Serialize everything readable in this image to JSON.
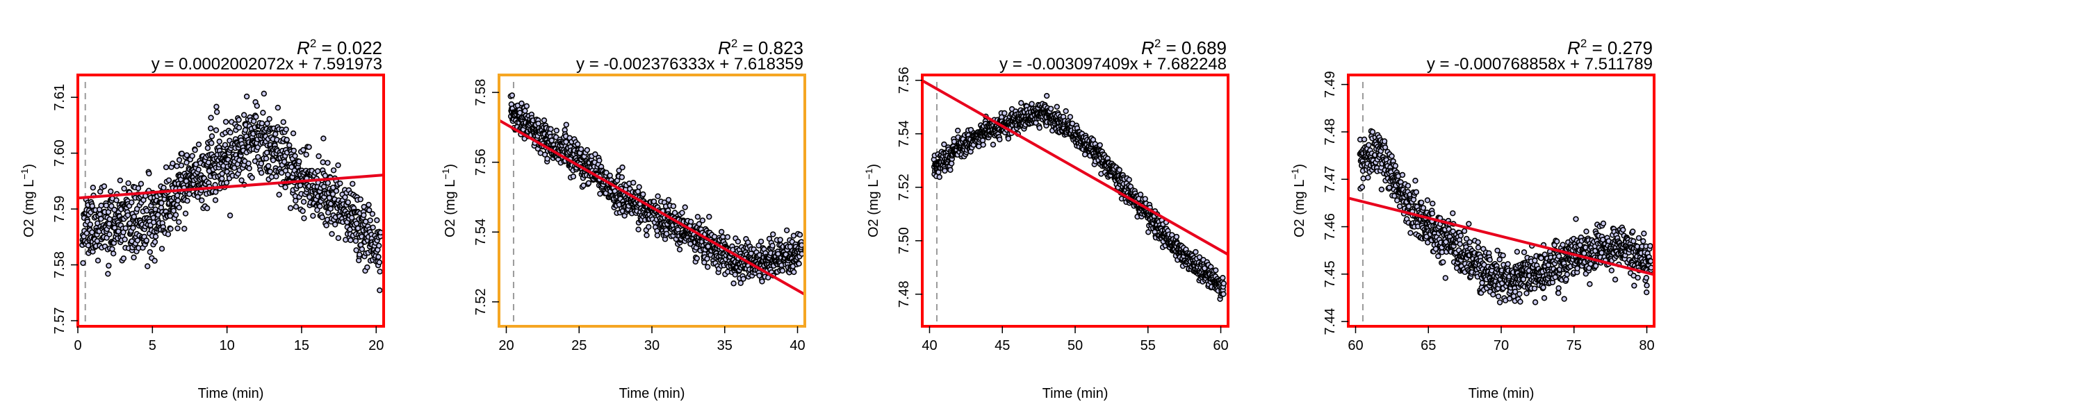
{
  "colors": {
    "panel_border_default": "#ff0000",
    "panel_border_highlight": "#f5a623",
    "fit_line": "#e8001c",
    "point_fill": "#c9c9ee",
    "point_stroke": "#000000",
    "start_marker": "#9a9a9a"
  },
  "chart_data": [
    {
      "type": "scatter",
      "title": "",
      "xlabel": "Time (min)",
      "ylabel_prefix": "O2 (mg L",
      "ylabel_exponent": "−1",
      "ylabel_suffix": ")",
      "xlim": [
        0,
        20.5
      ],
      "ylim": [
        7.569,
        7.614
      ],
      "x_ticks": [
        0,
        5,
        10,
        15,
        20
      ],
      "x_tick_labels": [
        "0",
        "5",
        "10",
        "15",
        "20"
      ],
      "y_ticks": [
        7.57,
        7.58,
        7.59,
        7.6,
        7.61
      ],
      "y_tick_labels": [
        "7.57",
        "7.58",
        "7.59",
        "7.60",
        "7.61"
      ],
      "grid": false,
      "border": "default",
      "r2_label": "R",
      "r2_exponent": "2",
      "r2_value": " = 0.022",
      "equation": "y = 0.0002002072x + 7.591973",
      "fit": {
        "slope": 0.0002002072,
        "intercept": 7.591973
      },
      "start_marker_x": 0.5,
      "x_range": [
        0.3,
        20.3
      ],
      "trend_points": [
        [
          0.3,
          7.587
        ],
        [
          3,
          7.587
        ],
        [
          5,
          7.588
        ],
        [
          7.5,
          7.595
        ],
        [
          10,
          7.599
        ],
        [
          12.5,
          7.603
        ],
        [
          15,
          7.596
        ],
        [
          17,
          7.592
        ],
        [
          19,
          7.587
        ],
        [
          20.3,
          7.582
        ]
      ],
      "noise": 0.0055,
      "n_points": 1200,
      "seed": 11
    },
    {
      "type": "scatter",
      "title": "",
      "xlabel": "Time (min)",
      "ylabel_prefix": "O2 (mg L",
      "ylabel_exponent": "−1",
      "ylabel_suffix": ")",
      "xlim": [
        19.5,
        40.5
      ],
      "ylim": [
        7.513,
        7.585
      ],
      "x_ticks": [
        20,
        25,
        30,
        35,
        40
      ],
      "x_tick_labels": [
        "20",
        "25",
        "30",
        "35",
        "40"
      ],
      "y_ticks": [
        7.52,
        7.54,
        7.56,
        7.58
      ],
      "y_tick_labels": [
        "7.52",
        "7.54",
        "7.56",
        "7.58"
      ],
      "grid": false,
      "border": "highlight",
      "r2_label": "R",
      "r2_exponent": "2",
      "r2_value": " = 0.823",
      "equation": "y = -0.002376333x + 7.618359",
      "fit": {
        "slope": -0.002376333,
        "intercept": 7.618359
      },
      "start_marker_x": 20.5,
      "x_range": [
        20.3,
        40.3
      ],
      "trend_points": [
        [
          20.3,
          7.574
        ],
        [
          22,
          7.569
        ],
        [
          25,
          7.56
        ],
        [
          28,
          7.55
        ],
        [
          31,
          7.543
        ],
        [
          34,
          7.536
        ],
        [
          36,
          7.531
        ],
        [
          38,
          7.532
        ],
        [
          40.3,
          7.534
        ]
      ],
      "noise": 0.0045,
      "n_points": 1200,
      "seed": 23
    },
    {
      "type": "scatter",
      "title": "",
      "xlabel": "Time (min)",
      "ylabel_prefix": "O2 (mg L",
      "ylabel_exponent": "−1",
      "ylabel_suffix": ")",
      "xlim": [
        39.5,
        60.5
      ],
      "ylim": [
        7.468,
        7.562
      ],
      "x_ticks": [
        40,
        45,
        50,
        55,
        60
      ],
      "x_tick_labels": [
        "40",
        "45",
        "50",
        "55",
        "60"
      ],
      "y_ticks": [
        7.48,
        7.5,
        7.52,
        7.54,
        7.56
      ],
      "y_tick_labels": [
        "7.48",
        "7.50",
        "7.52",
        "7.54",
        "7.56"
      ],
      "grid": false,
      "border": "default",
      "r2_label": "R",
      "r2_exponent": "2",
      "r2_value": " = 0.689",
      "equation": "y = -0.003097409x + 7.682248",
      "fit": {
        "slope": -0.003097409,
        "intercept": 7.682248
      },
      "start_marker_x": 40.5,
      "x_range": [
        40.3,
        60.2
      ],
      "trend_points": [
        [
          40.3,
          7.528
        ],
        [
          41,
          7.53
        ],
        [
          42,
          7.535
        ],
        [
          44,
          7.541
        ],
        [
          46,
          7.545
        ],
        [
          48,
          7.548
        ],
        [
          50,
          7.54
        ],
        [
          52,
          7.53
        ],
        [
          54,
          7.516
        ],
        [
          56,
          7.503
        ],
        [
          58,
          7.492
        ],
        [
          60.2,
          7.482
        ]
      ],
      "noise": 0.0038,
      "n_points": 1200,
      "seed": 37
    },
    {
      "type": "scatter",
      "title": "",
      "xlabel": "Time (min)",
      "ylabel_prefix": "O2 (mg L",
      "ylabel_exponent": "−1",
      "ylabel_suffix": ")",
      "xlim": [
        59.5,
        80.5
      ],
      "ylim": [
        7.439,
        7.492
      ],
      "x_ticks": [
        60,
        65,
        70,
        75,
        80
      ],
      "x_tick_labels": [
        "60",
        "65",
        "70",
        "75",
        "80"
      ],
      "y_ticks": [
        7.44,
        7.45,
        7.46,
        7.47,
        7.48,
        7.49
      ],
      "y_tick_labels": [
        "7.44",
        "7.45",
        "7.46",
        "7.47",
        "7.48",
        "7.49"
      ],
      "grid": false,
      "border": "default",
      "r2_label": "R",
      "r2_exponent": "2",
      "r2_value": " = 0.279",
      "equation": "y = -0.000768858x + 7.511789",
      "fit": {
        "slope": -0.000768858,
        "intercept": 7.511789
      },
      "start_marker_x": 60.5,
      "x_range": [
        60.3,
        80.3
      ],
      "trend_points": [
        [
          60.3,
          7.473
        ],
        [
          61.5,
          7.476
        ],
        [
          63,
          7.468
        ],
        [
          65,
          7.46
        ],
        [
          67,
          7.455
        ],
        [
          69,
          7.45
        ],
        [
          71,
          7.449
        ],
        [
          73,
          7.45
        ],
        [
          75,
          7.454
        ],
        [
          77,
          7.456
        ],
        [
          79,
          7.455
        ],
        [
          80.3,
          7.452
        ]
      ],
      "noise": 0.0042,
      "n_points": 1200,
      "seed": 53
    }
  ]
}
